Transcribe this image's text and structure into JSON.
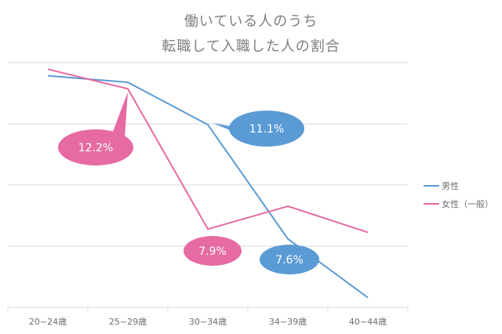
{
  "chart_data": {
    "type": "line",
    "title_line1": "働いている人のうち",
    "title_line2": "転職して入職した人の割合",
    "categories": [
      "20~24歳",
      "25~29歳",
      "30~34歳",
      "34~39歳",
      "40~44歳"
    ],
    "ylim": [
      5.5,
      13.0
    ],
    "grid": true,
    "legend_position": "right",
    "series": [
      {
        "name": "男性",
        "color": "#5b9bd5",
        "values": [
          12.6,
          12.4,
          11.1,
          7.6,
          5.8
        ]
      },
      {
        "name": "女性（一般）",
        "color": "#e66ba2",
        "values": [
          12.8,
          12.2,
          7.9,
          8.6,
          7.8
        ]
      }
    ],
    "annotations": [
      {
        "text": "12.2%",
        "series": 1,
        "point": 1,
        "color": "#e66ba2"
      },
      {
        "text": "11.1%",
        "series": 0,
        "point": 2,
        "color": "#5b9bd5"
      },
      {
        "text": "7.9%",
        "series": 1,
        "point": 2,
        "color": "#e66ba2"
      },
      {
        "text": "7.6%",
        "series": 0,
        "point": 3,
        "color": "#5b9bd5"
      }
    ]
  }
}
